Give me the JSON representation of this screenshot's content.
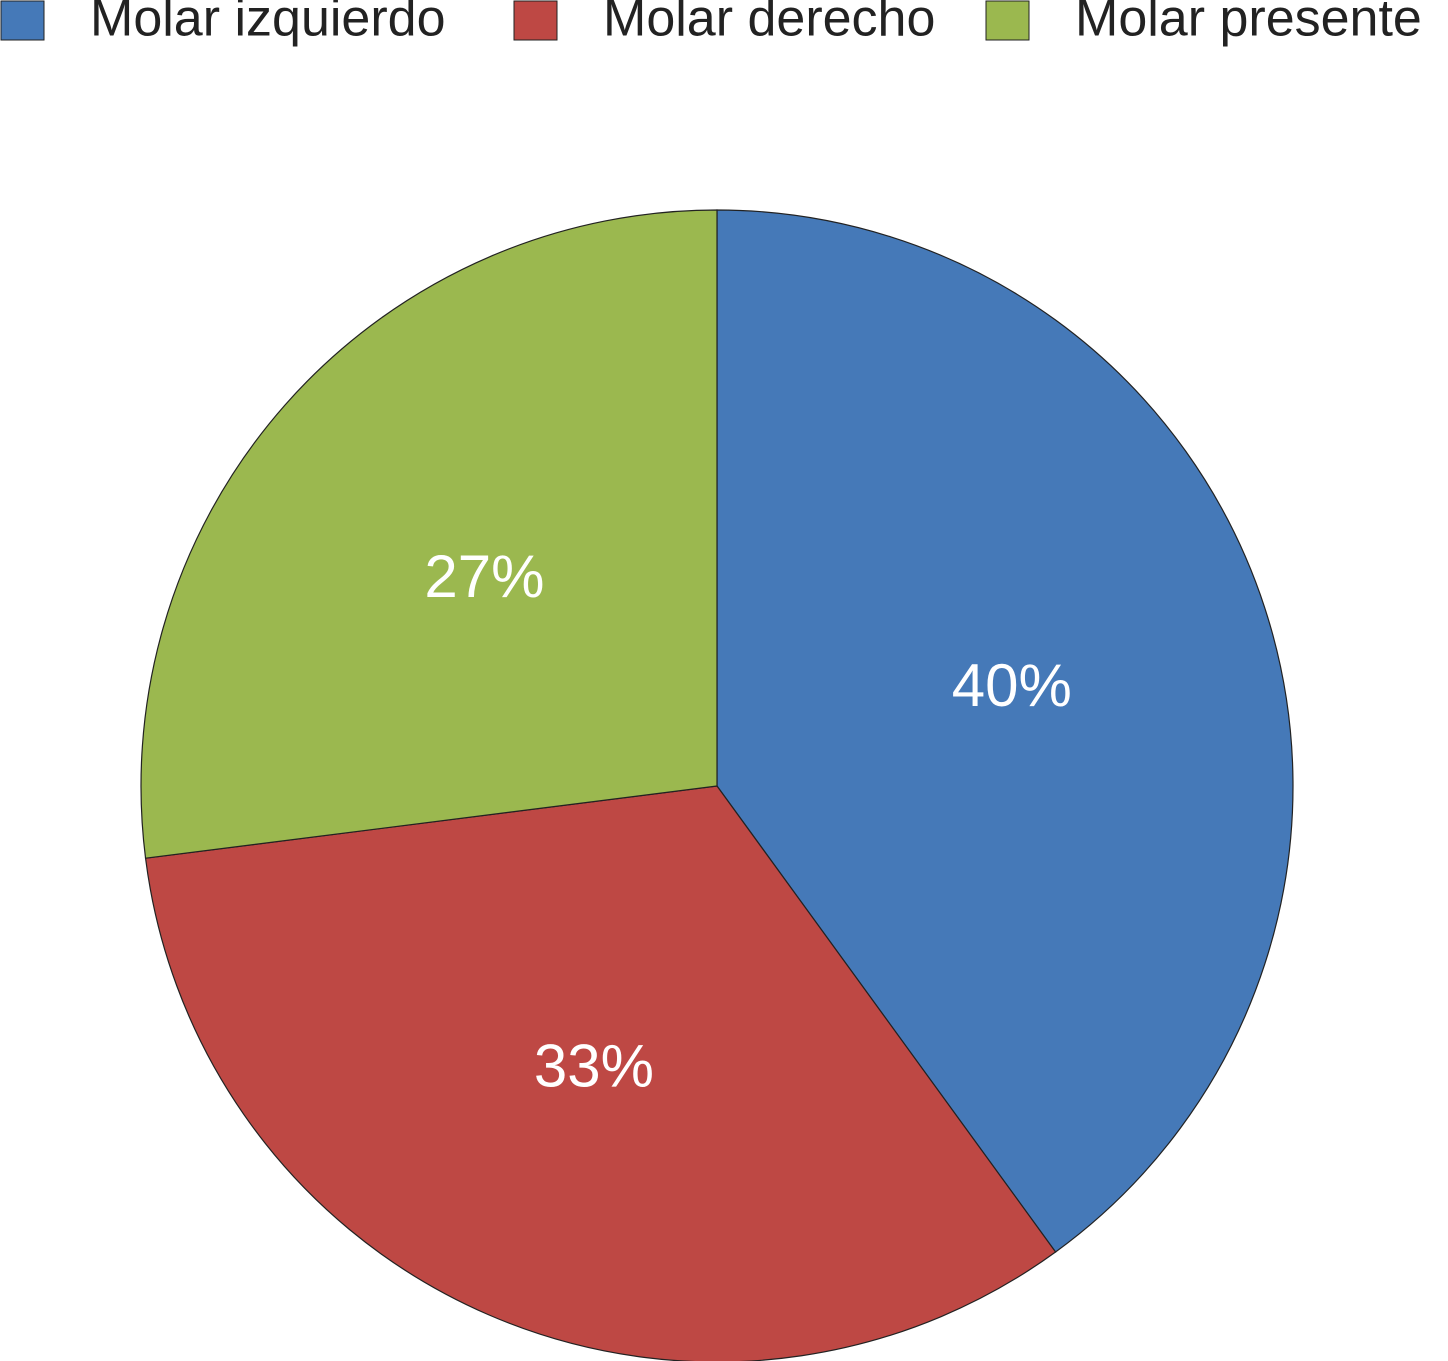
{
  "chart_data": {
    "type": "pie",
    "categories": [
      "Molar izquierdo",
      "Molar derecho",
      "Molar presente"
    ],
    "values": [
      40,
      33,
      27
    ],
    "value_labels": [
      "40%",
      "33%",
      "27%"
    ],
    "colors": [
      "#4579b8",
      "#be4844",
      "#9bb84f"
    ],
    "legend": "top"
  }
}
